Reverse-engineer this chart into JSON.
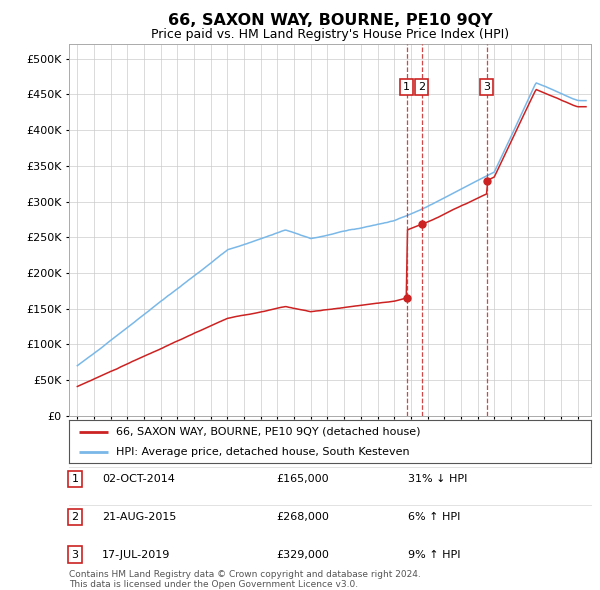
{
  "title": "66, SAXON WAY, BOURNE, PE10 9QY",
  "subtitle": "Price paid vs. HM Land Registry's House Price Index (HPI)",
  "legend_line1": "66, SAXON WAY, BOURNE, PE10 9QY (detached house)",
  "legend_line2": "HPI: Average price, detached house, South Kesteven",
  "footer1": "Contains HM Land Registry data © Crown copyright and database right 2024.",
  "footer2": "This data is licensed under the Open Government Licence v3.0.",
  "transactions": [
    {
      "num": 1,
      "date": "02-OCT-2014",
      "price": 165000,
      "hpi_rel": "31% ↓ HPI",
      "x_year": 2014.75
    },
    {
      "num": 2,
      "date": "21-AUG-2015",
      "price": 268000,
      "hpi_rel": "6% ↑ HPI",
      "x_year": 2015.64
    },
    {
      "num": 3,
      "date": "17-JUL-2019",
      "price": 329000,
      "hpi_rel": "9% ↑ HPI",
      "x_year": 2019.54
    }
  ],
  "hpi_color": "#7ab8e8",
  "price_color": "#cc2222",
  "dashed_color": "#cc3333",
  "background_color": "#ffffff",
  "grid_color": "#cccccc",
  "ylim": [
    0,
    520000
  ],
  "yticks": [
    0,
    50000,
    100000,
    150000,
    200000,
    250000,
    300000,
    350000,
    400000,
    450000,
    500000
  ],
  "xlim_start": 1994.5,
  "xlim_end": 2025.8
}
